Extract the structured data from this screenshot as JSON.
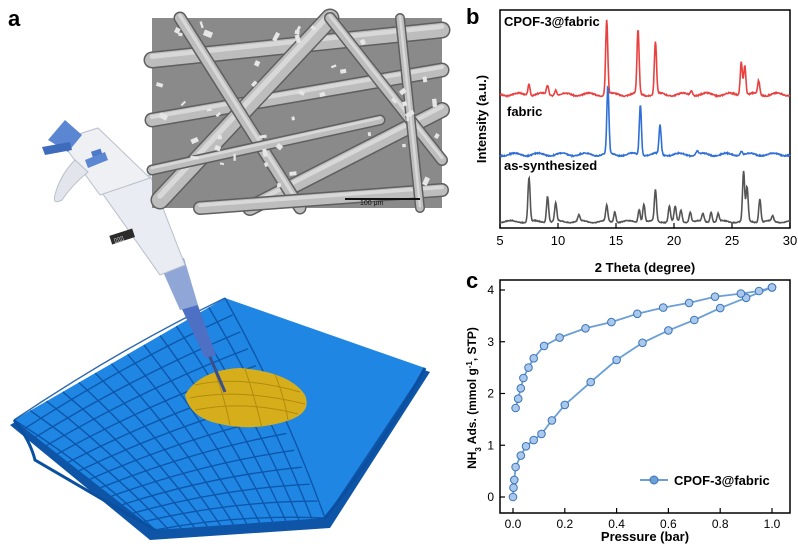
{
  "panels": {
    "a": "a",
    "b": "b",
    "c": "c"
  },
  "sem": {
    "scale_bar": "100 μm"
  },
  "pipette": {
    "label": "▯▯▯"
  },
  "colors": {
    "fabric_blue": "#1a7fe0",
    "spot_yellow": "#d7b21f",
    "cpof_red": "#e8413f",
    "fabric_line": "#2f6fd6",
    "synth_gray": "#555555",
    "iso_blue": "#6a9fd8"
  },
  "chart_data": [
    {
      "type": "line",
      "panel": "b",
      "xlabel": "2 Theta (degree)",
      "ylabel": "Intensity (a.u.)",
      "xlim": [
        5,
        30
      ],
      "xticks": [
        5,
        10,
        15,
        20,
        25,
        30
      ],
      "series": [
        {
          "name": "CPOF-3@fabric",
          "color": "#e8413f",
          "peaks": [
            [
              7.5,
              0.15
            ],
            [
              9.1,
              0.12
            ],
            [
              9.8,
              0.07
            ],
            [
              14.2,
              1.0
            ],
            [
              16.9,
              0.85
            ],
            [
              18.4,
              0.7
            ],
            [
              21.5,
              0.06
            ],
            [
              25.8,
              0.45
            ],
            [
              26.1,
              0.4
            ],
            [
              27.3,
              0.18
            ]
          ]
        },
        {
          "name": "fabric",
          "color": "#2f6fd6",
          "peaks": [
            [
              14.3,
              0.95
            ],
            [
              17.1,
              0.72
            ],
            [
              18.8,
              0.42
            ],
            [
              22.0,
              0.05
            ],
            [
              25.8,
              0.06
            ]
          ]
        },
        {
          "name": "as-synthesized",
          "color": "#555555",
          "peaks": [
            [
              7.5,
              0.85
            ],
            [
              9.1,
              0.5
            ],
            [
              9.8,
              0.35
            ],
            [
              11.8,
              0.12
            ],
            [
              14.2,
              0.3
            ],
            [
              14.9,
              0.2
            ],
            [
              17.0,
              0.25
            ],
            [
              17.4,
              0.35
            ],
            [
              18.4,
              0.6
            ],
            [
              19.6,
              0.3
            ],
            [
              20.1,
              0.28
            ],
            [
              20.6,
              0.22
            ],
            [
              21.4,
              0.2
            ],
            [
              22.5,
              0.15
            ],
            [
              23.2,
              0.2
            ],
            [
              23.8,
              0.15
            ],
            [
              26.0,
              0.95
            ],
            [
              26.3,
              0.65
            ],
            [
              27.4,
              0.45
            ],
            [
              28.5,
              0.1
            ]
          ]
        }
      ]
    },
    {
      "type": "scatter",
      "panel": "c",
      "xlabel": "Pressure (bar)",
      "ylabel": "NH₃ Ads. (mmol g⁻¹, STP)",
      "ylabel_parts": {
        "a": "NH",
        "sub": "3",
        "b": " Ads. (mmol g",
        "sup": "-1",
        "c": ", STP)"
      },
      "xlim": [
        0,
        1.0
      ],
      "ylim": [
        0,
        4.2
      ],
      "xticks": [
        "0.0",
        "0.2",
        "0.4",
        "0.6",
        "0.8",
        "1.0"
      ],
      "yticks": [
        0,
        1,
        2,
        3,
        4
      ],
      "legend": {
        "label": "CPOF-3@fabric",
        "position": "bottom-right"
      },
      "series": [
        {
          "name": "CPOF-3@fabric",
          "color": "#6a9fd8",
          "adsorption": [
            [
              0.0,
              0.0
            ],
            [
              0.002,
              0.18
            ],
            [
              0.005,
              0.33
            ],
            [
              0.01,
              0.58
            ],
            [
              0.03,
              0.8
            ],
            [
              0.05,
              0.98
            ],
            [
              0.08,
              1.1
            ],
            [
              0.11,
              1.22
            ],
            [
              0.15,
              1.48
            ],
            [
              0.2,
              1.78
            ],
            [
              0.3,
              2.22
            ],
            [
              0.4,
              2.65
            ],
            [
              0.5,
              2.98
            ],
            [
              0.6,
              3.22
            ],
            [
              0.7,
              3.42
            ],
            [
              0.8,
              3.65
            ],
            [
              0.9,
              3.85
            ],
            [
              1.0,
              4.05
            ]
          ],
          "desorption": [
            [
              1.0,
              4.05
            ],
            [
              0.95,
              3.98
            ],
            [
              0.88,
              3.93
            ],
            [
              0.78,
              3.87
            ],
            [
              0.68,
              3.75
            ],
            [
              0.58,
              3.66
            ],
            [
              0.48,
              3.54
            ],
            [
              0.38,
              3.38
            ],
            [
              0.28,
              3.26
            ],
            [
              0.18,
              3.08
            ],
            [
              0.12,
              2.92
            ],
            [
              0.08,
              2.68
            ],
            [
              0.06,
              2.5
            ],
            [
              0.04,
              2.3
            ],
            [
              0.03,
              2.1
            ],
            [
              0.02,
              1.9
            ],
            [
              0.01,
              1.72
            ]
          ]
        }
      ]
    }
  ]
}
